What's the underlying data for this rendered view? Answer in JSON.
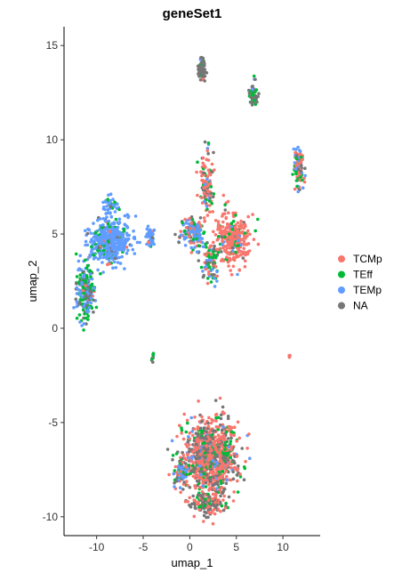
{
  "chart_data": {
    "type": "scatter",
    "title": "geneSet1",
    "xlabel": "umap_1",
    "ylabel": "umap_2",
    "xlim": [
      -13.5,
      14.0
    ],
    "ylim": [
      -11.0,
      16.0
    ],
    "x_ticks": [
      -10,
      -5,
      0,
      5,
      10
    ],
    "y_ticks": [
      -10,
      -5,
      0,
      5,
      10,
      15
    ],
    "grid": false,
    "legend_position": "right",
    "series": [
      {
        "name": "TCMp",
        "color": "#F8766D"
      },
      {
        "name": "TEff",
        "color": "#00BA38"
      },
      {
        "name": "TEMp",
        "color": "#619CFF"
      },
      {
        "name": "NA",
        "color": "#767676"
      }
    ],
    "clusters": [
      {
        "center": [
          1.3,
          13.8
        ],
        "spread": [
          0.25,
          0.45
        ],
        "n": 70,
        "weights": [
          0.1,
          0.05,
          0.05,
          0.8
        ]
      },
      {
        "center": [
          6.8,
          12.4
        ],
        "spread": [
          0.35,
          0.45
        ],
        "n": 50,
        "weights": [
          0.05,
          0.4,
          0.05,
          0.5
        ]
      },
      {
        "center": [
          11.7,
          8.6
        ],
        "spread": [
          0.35,
          0.7
        ],
        "n": 110,
        "weights": [
          0.35,
          0.25,
          0.3,
          0.1
        ]
      },
      {
        "center": [
          1.9,
          7.6
        ],
        "spread": [
          0.5,
          1.1
        ],
        "n": 110,
        "weights": [
          0.55,
          0.15,
          0.05,
          0.25
        ]
      },
      {
        "center": [
          4.5,
          4.7
        ],
        "spread": [
          1.2,
          0.9
        ],
        "n": 300,
        "weights": [
          0.75,
          0.12,
          0.08,
          0.05
        ]
      },
      {
        "center": [
          0.3,
          5.1
        ],
        "spread": [
          0.9,
          0.55
        ],
        "n": 160,
        "weights": [
          0.3,
          0.15,
          0.45,
          0.1
        ]
      },
      {
        "center": [
          2.2,
          3.5
        ],
        "spread": [
          0.6,
          0.7
        ],
        "n": 90,
        "weights": [
          0.3,
          0.3,
          0.15,
          0.25
        ]
      },
      {
        "center": [
          -8.6,
          4.6
        ],
        "spread": [
          1.5,
          0.75
        ],
        "n": 460,
        "weights": [
          0.04,
          0.1,
          0.82,
          0.04
        ]
      },
      {
        "center": [
          -8.5,
          6.5
        ],
        "spread": [
          0.5,
          0.4
        ],
        "n": 35,
        "weights": [
          0.05,
          0.1,
          0.8,
          0.05
        ]
      },
      {
        "center": [
          -11.2,
          1.9
        ],
        "spread": [
          0.65,
          0.95
        ],
        "n": 230,
        "weights": [
          0.03,
          0.45,
          0.3,
          0.22
        ]
      },
      {
        "center": [
          -4.3,
          4.9
        ],
        "spread": [
          0.35,
          0.35
        ],
        "n": 45,
        "weights": [
          0.05,
          0.05,
          0.85,
          0.05
        ]
      },
      {
        "center": [
          -3.9,
          -1.5
        ],
        "spread": [
          0.15,
          0.15
        ],
        "n": 8,
        "weights": [
          0.0,
          0.6,
          0.0,
          0.4
        ]
      },
      {
        "center": [
          10.7,
          -1.5
        ],
        "spread": [
          0.1,
          0.1
        ],
        "n": 3,
        "weights": [
          1.0,
          0.0,
          0.0,
          0.0
        ]
      },
      {
        "center": [
          2.2,
          -6.9
        ],
        "spread": [
          1.9,
          1.35
        ],
        "n": 1000,
        "weights": [
          0.5,
          0.15,
          0.05,
          0.3
        ]
      },
      {
        "center": [
          1.8,
          -9.3
        ],
        "spread": [
          1.2,
          0.4
        ],
        "n": 120,
        "weights": [
          0.45,
          0.1,
          0.0,
          0.45
        ]
      },
      {
        "center": [
          -0.9,
          -7.8
        ],
        "spread": [
          0.45,
          0.45
        ],
        "n": 70,
        "weights": [
          0.15,
          0.35,
          0.35,
          0.15
        ]
      }
    ]
  }
}
